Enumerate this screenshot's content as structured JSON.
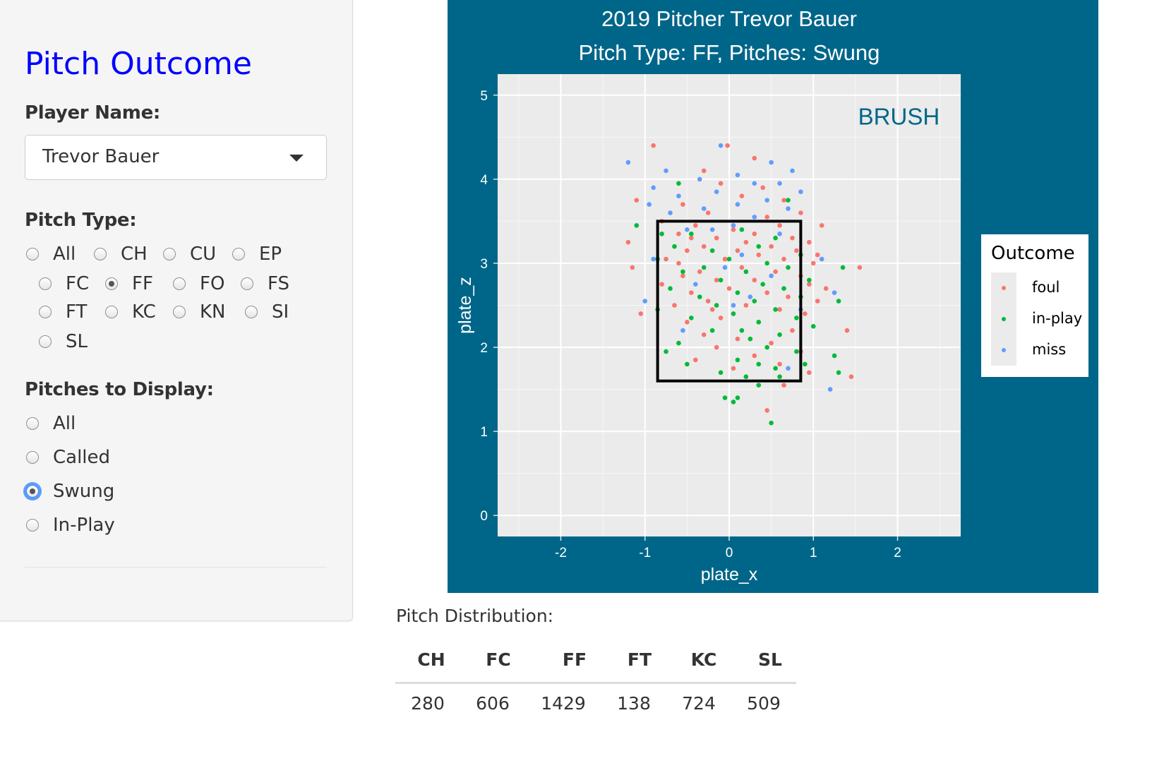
{
  "sidebar": {
    "title": "Pitch Outcome",
    "player_label": "Player Name:",
    "player_value": "Trevor Bauer",
    "pitch_type_label": "Pitch Type:",
    "pitch_types": [
      "All",
      "CH",
      "CU",
      "EP",
      "FC",
      "FF",
      "FO",
      "FS",
      "FT",
      "KC",
      "KN",
      "SI",
      "SL"
    ],
    "pitch_type_selected": "FF",
    "pitches_label": "Pitches to Display:",
    "pitch_options": [
      "All",
      "Called",
      "Swung",
      "In-Play"
    ],
    "pitch_option_selected": "Swung"
  },
  "plot": {
    "background": "#006689",
    "title_line1": "2019 Pitcher Trevor Bauer",
    "title_line2": "Pitch Type: FF, Pitches: Swung",
    "annotation": "BRUSH",
    "annotation_color": "#006689",
    "legend_title": "Outcome",
    "legend_items": [
      {
        "label": "foul",
        "color": "#F8766D"
      },
      {
        "label": "in-play",
        "color": "#00BA38"
      },
      {
        "label": "miss",
        "color": "#619CFF"
      }
    ]
  },
  "chart_data": {
    "type": "scatter",
    "title": "2019 Pitcher Trevor Bauer",
    "subtitle": "Pitch Type: FF, Pitches: Swung",
    "xlabel": "plate_x",
    "ylabel": "plate_z",
    "xlim": [
      -2.75,
      2.75
    ],
    "ylim": [
      -0.25,
      5.25
    ],
    "xticks": [
      -2,
      -1,
      0,
      1,
      2
    ],
    "yticks": [
      0,
      1,
      2,
      3,
      4,
      5
    ],
    "grid": true,
    "legend": "right",
    "strike_zone": {
      "x": [
        -0.85,
        0.85
      ],
      "z": [
        1.6,
        3.5
      ]
    },
    "series": [
      {
        "name": "foul",
        "color": "#F8766D",
        "points": [
          [
            -0.9,
            4.4
          ],
          [
            -0.02,
            4.4
          ],
          [
            0.3,
            4.25
          ],
          [
            -0.3,
            4.1
          ],
          [
            -0.1,
            3.95
          ],
          [
            0.4,
            3.9
          ],
          [
            -1.1,
            3.75
          ],
          [
            0.65,
            3.75
          ],
          [
            -0.55,
            3.7
          ],
          [
            0.15,
            3.8
          ],
          [
            0.85,
            3.6
          ],
          [
            -0.25,
            3.6
          ],
          [
            0.45,
            3.55
          ],
          [
            -0.8,
            3.5
          ],
          [
            1.1,
            3.45
          ],
          [
            0.6,
            3.45
          ],
          [
            -0.4,
            3.45
          ],
          [
            0.05,
            3.4
          ],
          [
            0.3,
            3.35
          ],
          [
            -0.6,
            3.35
          ],
          [
            0.75,
            3.3
          ],
          [
            -0.15,
            3.3
          ],
          [
            0.95,
            3.25
          ],
          [
            -1.2,
            3.25
          ],
          [
            0.2,
            3.25
          ],
          [
            -0.3,
            3.2
          ],
          [
            0.5,
            3.2
          ],
          [
            -0.5,
            3.15
          ],
          [
            1.05,
            3.1
          ],
          [
            0.35,
            3.1
          ],
          [
            -0.05,
            3.05
          ],
          [
            0.65,
            3.05
          ],
          [
            -0.75,
            3.05
          ],
          [
            1.0,
            3.0
          ],
          [
            -1.15,
            2.95
          ],
          [
            1.55,
            2.95
          ],
          [
            0.15,
            2.95
          ],
          [
            -0.35,
            2.9
          ],
          [
            0.55,
            2.9
          ],
          [
            0.85,
            2.85
          ],
          [
            -0.55,
            2.85
          ],
          [
            0.3,
            2.8
          ],
          [
            -0.15,
            2.8
          ],
          [
            0.95,
            2.75
          ],
          [
            -0.8,
            2.75
          ],
          [
            1.15,
            2.7
          ],
          [
            0.0,
            2.7
          ],
          [
            0.45,
            2.65
          ],
          [
            -0.45,
            2.65
          ],
          [
            0.7,
            2.6
          ],
          [
            -0.25,
            2.55
          ],
          [
            1.05,
            2.55
          ],
          [
            0.2,
            2.5
          ],
          [
            -0.65,
            2.5
          ],
          [
            0.6,
            2.45
          ],
          [
            -1.05,
            2.4
          ],
          [
            0.9,
            2.4
          ],
          [
            -0.1,
            2.35
          ],
          [
            0.35,
            2.3
          ],
          [
            -0.5,
            2.3
          ],
          [
            1.4,
            2.2
          ],
          [
            0.75,
            2.2
          ],
          [
            -0.3,
            2.15
          ],
          [
            0.1,
            2.1
          ],
          [
            0.5,
            2.05
          ],
          [
            -0.15,
            2.0
          ],
          [
            0.85,
            1.95
          ],
          [
            0.3,
            1.9
          ],
          [
            -0.4,
            1.85
          ],
          [
            0.6,
            1.8
          ],
          [
            0.05,
            1.75
          ],
          [
            0.95,
            1.7
          ],
          [
            1.45,
            1.65
          ],
          [
            0.65,
            1.55
          ],
          [
            0.45,
            1.25
          ],
          [
            -0.6,
            3.0
          ],
          [
            -0.45,
            3.3
          ],
          [
            0.1,
            3.15
          ],
          [
            0.8,
            3.15
          ],
          [
            -0.2,
            2.45
          ]
        ]
      },
      {
        "name": "in-play",
        "color": "#00BA38",
        "points": [
          [
            -0.6,
            3.95
          ],
          [
            0.7,
            3.75
          ],
          [
            -1.1,
            3.45
          ],
          [
            -0.8,
            3.35
          ],
          [
            -0.45,
            3.35
          ],
          [
            0.15,
            3.4
          ],
          [
            0.55,
            3.3
          ],
          [
            -0.65,
            3.2
          ],
          [
            0.35,
            3.2
          ],
          [
            -0.2,
            3.15
          ],
          [
            0.85,
            3.1
          ],
          [
            -0.85,
            3.05
          ],
          [
            0.0,
            3.05
          ],
          [
            0.45,
            3.0
          ],
          [
            -0.3,
            2.95
          ],
          [
            0.7,
            2.95
          ],
          [
            0.2,
            2.9
          ],
          [
            -0.55,
            2.9
          ],
          [
            1.35,
            2.95
          ],
          [
            0.95,
            2.8
          ],
          [
            -0.1,
            2.8
          ],
          [
            0.4,
            2.75
          ],
          [
            -0.7,
            2.7
          ],
          [
            0.65,
            2.7
          ],
          [
            0.1,
            2.65
          ],
          [
            -0.35,
            2.6
          ],
          [
            0.85,
            2.6
          ],
          [
            1.3,
            2.55
          ],
          [
            0.3,
            2.55
          ],
          [
            -0.15,
            2.5
          ],
          [
            0.55,
            2.45
          ],
          [
            -0.85,
            2.45
          ],
          [
            0.05,
            2.4
          ],
          [
            0.8,
            2.35
          ],
          [
            -0.45,
            2.35
          ],
          [
            0.35,
            2.3
          ],
          [
            1.0,
            2.25
          ],
          [
            0.15,
            2.2
          ],
          [
            -0.2,
            2.2
          ],
          [
            0.6,
            2.15
          ],
          [
            0.25,
            2.1
          ],
          [
            -0.6,
            2.05
          ],
          [
            0.45,
            2.0
          ],
          [
            0.8,
            1.95
          ],
          [
            -0.75,
            1.95
          ],
          [
            1.25,
            1.9
          ],
          [
            0.1,
            1.85
          ],
          [
            -0.5,
            1.8
          ],
          [
            0.35,
            1.8
          ],
          [
            0.9,
            1.8
          ],
          [
            0.55,
            1.75
          ],
          [
            -0.1,
            1.7
          ],
          [
            1.3,
            1.7
          ],
          [
            0.2,
            1.65
          ],
          [
            0.6,
            1.65
          ],
          [
            0.35,
            1.55
          ],
          [
            0.1,
            1.4
          ],
          [
            -0.05,
            1.4
          ],
          [
            0.05,
            1.35
          ],
          [
            0.5,
            1.1
          ]
        ]
      },
      {
        "name": "miss",
        "color": "#619CFF",
        "points": [
          [
            -1.2,
            4.2
          ],
          [
            -0.1,
            4.4
          ],
          [
            0.5,
            4.2
          ],
          [
            0.75,
            4.1
          ],
          [
            -0.75,
            4.1
          ],
          [
            0.1,
            4.05
          ],
          [
            -0.35,
            4.0
          ],
          [
            0.6,
            3.95
          ],
          [
            -0.9,
            3.9
          ],
          [
            0.3,
            3.95
          ],
          [
            -0.15,
            3.85
          ],
          [
            0.85,
            3.85
          ],
          [
            -0.6,
            3.8
          ],
          [
            0.45,
            3.75
          ],
          [
            0.1,
            3.7
          ],
          [
            -0.95,
            3.7
          ],
          [
            -0.3,
            3.65
          ],
          [
            0.7,
            3.65
          ],
          [
            -0.7,
            3.6
          ],
          [
            0.3,
            3.55
          ],
          [
            -0.2,
            3.4
          ],
          [
            0.05,
            3.45
          ],
          [
            -0.5,
            3.4
          ],
          [
            0.6,
            3.35
          ],
          [
            -0.9,
            3.05
          ],
          [
            0.15,
            3.1
          ],
          [
            1.1,
            3.05
          ],
          [
            -0.05,
            2.95
          ],
          [
            0.5,
            2.85
          ],
          [
            -0.4,
            2.75
          ],
          [
            1.25,
            2.65
          ],
          [
            0.25,
            2.6
          ],
          [
            -1.0,
            2.55
          ],
          [
            0.05,
            2.5
          ],
          [
            0.85,
            2.45
          ],
          [
            -0.55,
            2.2
          ],
          [
            1.2,
            1.5
          ],
          [
            0.7,
            1.75
          ]
        ]
      }
    ]
  },
  "table": {
    "caption": "Pitch Distribution:",
    "headers": [
      "CH",
      "FC",
      "FF",
      "FT",
      "KC",
      "SL"
    ],
    "values": [
      "280",
      "606",
      "1429",
      "138",
      "724",
      "509"
    ]
  }
}
